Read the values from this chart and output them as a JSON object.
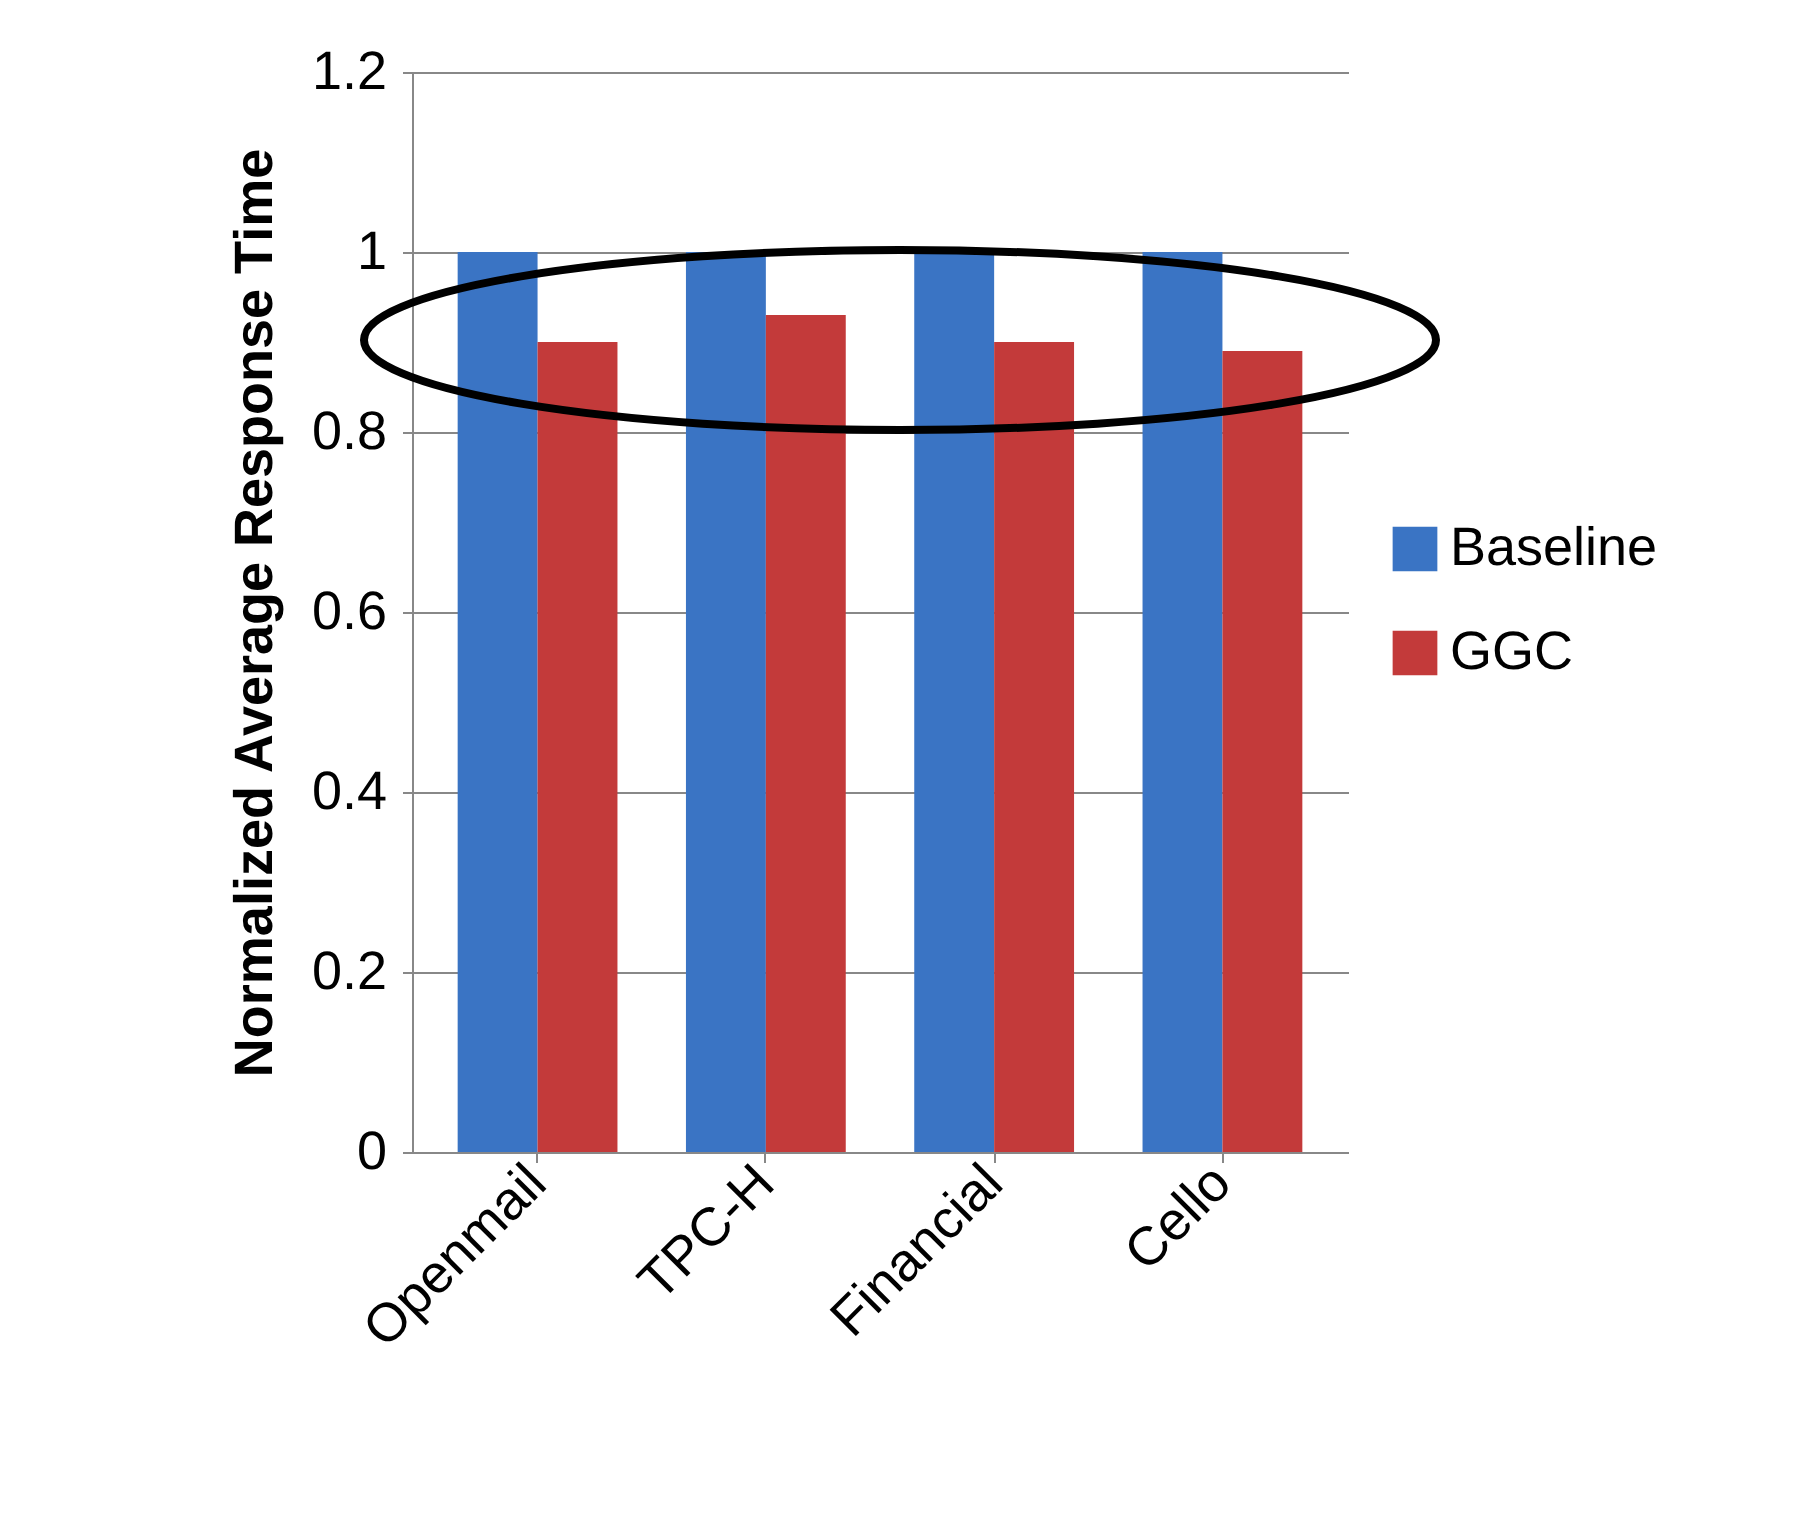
{
  "chart_data": {
    "type": "bar",
    "ylabel": "Normalized Average Response Time",
    "categories": [
      "Openmail",
      "TPC-H",
      "Financial",
      "Cello"
    ],
    "series": [
      {
        "name": "Baseline",
        "color": "#3a74c4",
        "values": [
          1,
          1,
          1,
          1
        ]
      },
      {
        "name": "GGC",
        "color": "#c33a3a",
        "values": [
          0.9,
          0.93,
          0.9,
          0.89
        ]
      }
    ],
    "ylim": [
      0,
      1.2
    ],
    "yticks": [
      0,
      0.2,
      0.4,
      0.6,
      0.8,
      1,
      1.2
    ],
    "grid": "y",
    "legend": "right"
  }
}
